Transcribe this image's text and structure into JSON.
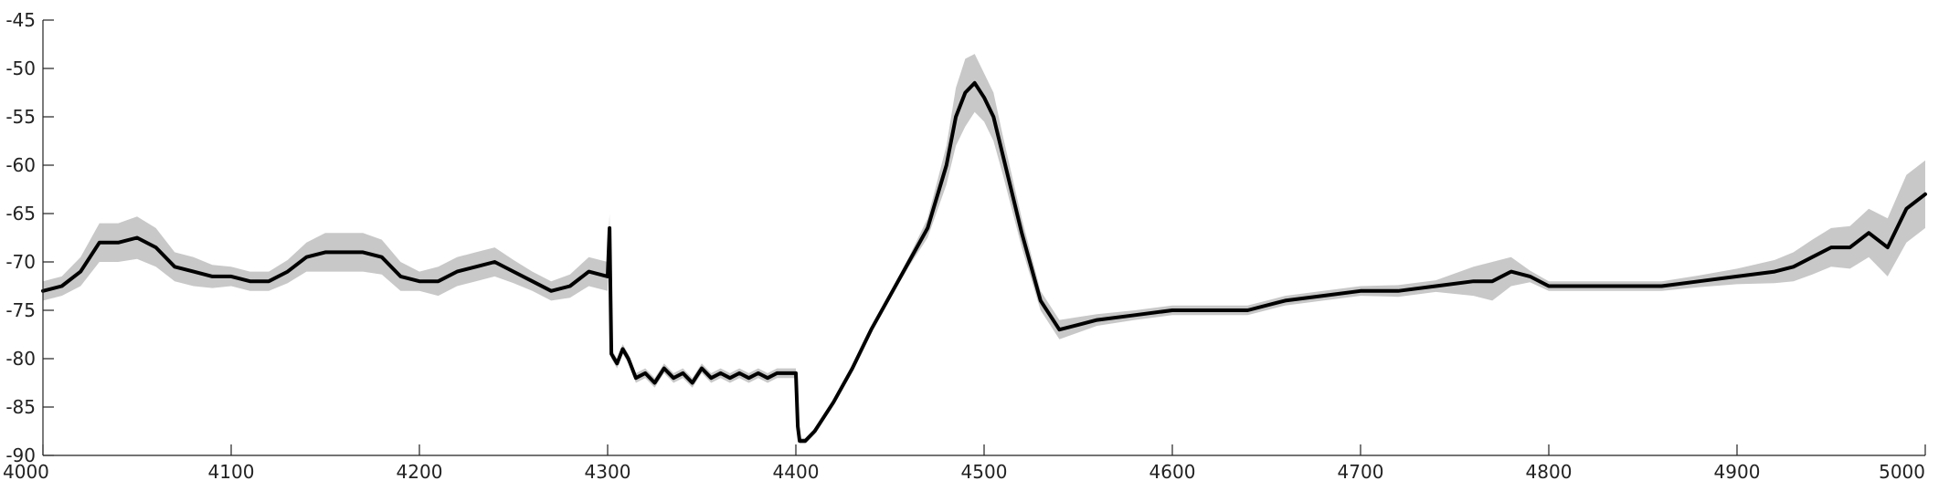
{
  "chart_data": {
    "type": "line",
    "title": "",
    "xlabel": "",
    "ylabel": "",
    "xlim": [
      4000,
      5000
    ],
    "ylim": [
      -90,
      -45
    ],
    "xticks": [
      4000,
      4100,
      4200,
      4300,
      4400,
      4500,
      4600,
      4700,
      4800,
      4900,
      5000
    ],
    "yticks": [
      -45,
      -50,
      -55,
      -60,
      -65,
      -70,
      -75,
      -80,
      -85,
      -90
    ],
    "grid": false,
    "legend": "none",
    "colors": {
      "mean_line": "#000000",
      "band": "#c8c8c8",
      "axis": "#222222"
    },
    "series": [
      {
        "role": "mean",
        "x": [
          4000,
          4010,
          4020,
          4030,
          4040,
          4050,
          4060,
          4070,
          4080,
          4090,
          4100,
          4110,
          4120,
          4130,
          4140,
          4150,
          4160,
          4170,
          4180,
          4190,
          4200,
          4210,
          4220,
          4230,
          4240,
          4250,
          4260,
          4270,
          4280,
          4290,
          4300,
          4301,
          4302,
          4305,
          4308,
          4311,
          4315,
          4320,
          4325,
          4330,
          4335,
          4340,
          4345,
          4350,
          4355,
          4360,
          4365,
          4370,
          4375,
          4380,
          4385,
          4390,
          4395,
          4400,
          4401,
          4402,
          4405,
          4410,
          4420,
          4430,
          4440,
          4450,
          4460,
          4470,
          4480,
          4485,
          4490,
          4495,
          4500,
          4505,
          4510,
          4520,
          4530,
          4540,
          4550,
          4560,
          4580,
          4600,
          4620,
          4640,
          4660,
          4680,
          4700,
          4720,
          4740,
          4760,
          4770,
          4780,
          4790,
          4800,
          4820,
          4840,
          4860,
          4880,
          4900,
          4920,
          4930,
          4940,
          4950,
          4960,
          4970,
          4980,
          4990,
          5000
        ],
        "y": [
          -73,
          -72.5,
          -71,
          -68,
          -68,
          -67.5,
          -68.5,
          -70.5,
          -71,
          -71.5,
          -71.5,
          -72,
          -72,
          -71,
          -69.5,
          -69,
          -69,
          -69,
          -69.5,
          -71.5,
          -72,
          -72,
          -71,
          -70.5,
          -70,
          -71,
          -72,
          -73,
          -72.5,
          -71,
          -71.5,
          -66.5,
          -79.5,
          -80.5,
          -79,
          -80,
          -82,
          -81.5,
          -82.5,
          -81,
          -82,
          -81.5,
          -82.5,
          -81,
          -82,
          -81.5,
          -82,
          -81.5,
          -82,
          -81.5,
          -82,
          -81.5,
          -81.5,
          -81.5,
          -87,
          -88.5,
          -88.5,
          -87.5,
          -84.5,
          -81,
          -77,
          -73.5,
          -70,
          -66.5,
          -60,
          -55,
          -52.5,
          -51.5,
          -53,
          -55,
          -59,
          -67,
          -74,
          -77,
          -76.5,
          -76,
          -75.5,
          -75,
          -75,
          -75,
          -74,
          -73.5,
          -73,
          -73,
          -72.5,
          -72,
          -72,
          -71,
          -71.5,
          -72.5,
          -72.5,
          -72.5,
          -72.5,
          -72,
          -71.5,
          -71,
          -70.5,
          -69.5,
          -68.5,
          -68.5,
          -67,
          -68.5,
          -64.5,
          -63
        ],
        "band_half_width": [
          1,
          1,
          1.5,
          2,
          2,
          2.2,
          2,
          1.5,
          1.5,
          1.2,
          1,
          1,
          1,
          1.2,
          1.5,
          2,
          2,
          2,
          1.8,
          1.5,
          1,
          1.5,
          1.5,
          1.5,
          1.5,
          1.2,
          1,
          1,
          1.2,
          1.5,
          1.5,
          1.5,
          0.5,
          0.5,
          0.5,
          0.5,
          0.5,
          0.5,
          0.5,
          0.5,
          0.5,
          0.5,
          0.5,
          0.5,
          0.5,
          0.5,
          0.5,
          0.5,
          0.5,
          0.5,
          0.5,
          0.5,
          0.5,
          0.5,
          0.3,
          0.3,
          0.3,
          0.3,
          0.3,
          0.3,
          0.3,
          0.3,
          0.5,
          1,
          2,
          3,
          3.5,
          3,
          2.5,
          2.5,
          2,
          1.5,
          1,
          1,
          0.8,
          0.6,
          0.5,
          0.5,
          0.5,
          0.5,
          0.5,
          0.5,
          0.5,
          0.6,
          0.6,
          1.5,
          2,
          1.5,
          0.6,
          0.5,
          0.5,
          0.5,
          0.5,
          0.6,
          0.8,
          1.2,
          1.5,
          1.8,
          2,
          2.2,
          2.5,
          3,
          3.5,
          3.5
        ]
      }
    ]
  }
}
